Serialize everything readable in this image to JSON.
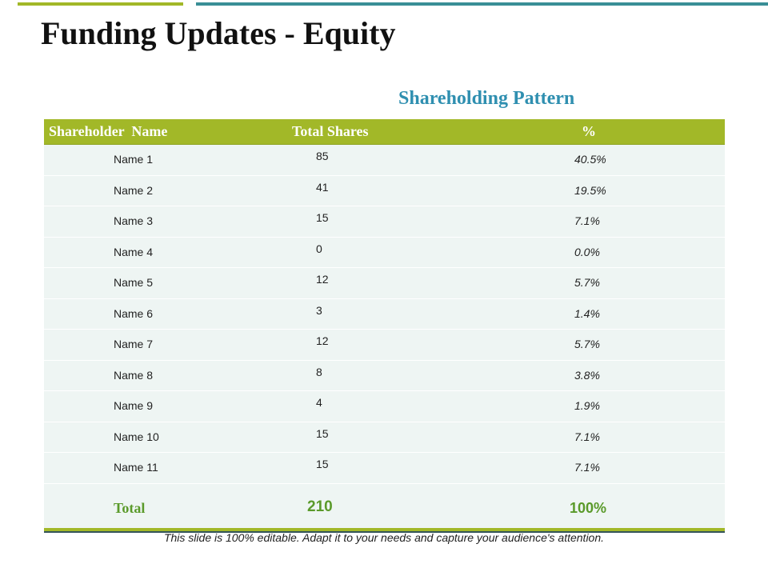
{
  "slide": {
    "title": "Funding Updates - Equity",
    "table_heading": "Shareholding Pattern",
    "footer_note": "This slide is 100% editable. Adapt it to your needs and capture your audience's attention."
  },
  "colors": {
    "accent_green": "#a2b828",
    "accent_teal": "#3a8f96",
    "heading_blue": "#2f8fb0",
    "row_bg": "#eef5f3"
  },
  "table": {
    "headers": {
      "name": "Shareholder  Name",
      "shares": "Total Shares",
      "percent": "%"
    },
    "rows": [
      {
        "name": "Name 1",
        "shares": "85",
        "percent": "40.5%"
      },
      {
        "name": "Name 2",
        "shares": "41",
        "percent": "19.5%"
      },
      {
        "name": "Name 3",
        "shares": "15",
        "percent": "7.1%"
      },
      {
        "name": "Name 4",
        "shares": "0",
        "percent": "0.0%"
      },
      {
        "name": "Name 5",
        "shares": "12",
        "percent": "5.7%"
      },
      {
        "name": "Name 6",
        "shares": "3",
        "percent": "1.4%"
      },
      {
        "name": "Name 7",
        "shares": "12",
        "percent": "5.7%"
      },
      {
        "name": "Name 8",
        "shares": "8",
        "percent": "3.8%"
      },
      {
        "name": "Name 9",
        "shares": "4",
        "percent": "1.9%"
      },
      {
        "name": "Name 10",
        "shares": "15",
        "percent": "7.1%"
      },
      {
        "name": "Name 11",
        "shares": "15",
        "percent": "7.1%"
      }
    ],
    "total": {
      "label": "Total",
      "shares": "210",
      "percent": "100%"
    }
  }
}
